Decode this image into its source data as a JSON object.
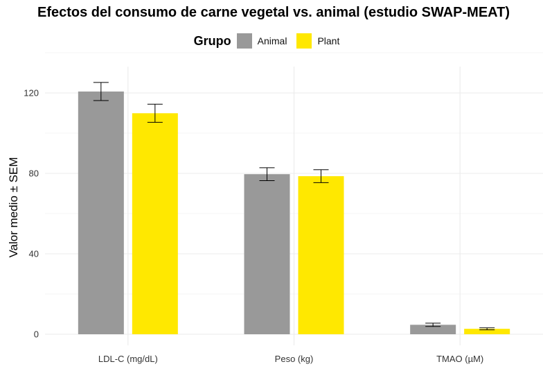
{
  "chart_data": {
    "type": "bar",
    "title": "Efectos del consumo de carne vegetal vs. animal (estudio SWAP-MEAT)",
    "ylabel": "Valor medio ± SEM",
    "xlabel": "",
    "legend_title": "Grupo",
    "legend_position": "top",
    "categories": [
      "LDL-C (mg/dL)",
      "Peso (kg)",
      "TMAO (µM)"
    ],
    "series": [
      {
        "name": "Animal",
        "color": "#999999",
        "values": [
          120.7,
          79.6,
          4.7
        ],
        "sem": [
          4.5,
          3.2,
          0.8
        ]
      },
      {
        "name": "Plant",
        "color": "#FFE800",
        "values": [
          109.9,
          78.6,
          2.7
        ],
        "sem": [
          4.5,
          3.2,
          0.5
        ]
      }
    ],
    "yticks": [
      0,
      40,
      80,
      120
    ],
    "ylim": [
      -4,
      133
    ],
    "grid": true
  }
}
